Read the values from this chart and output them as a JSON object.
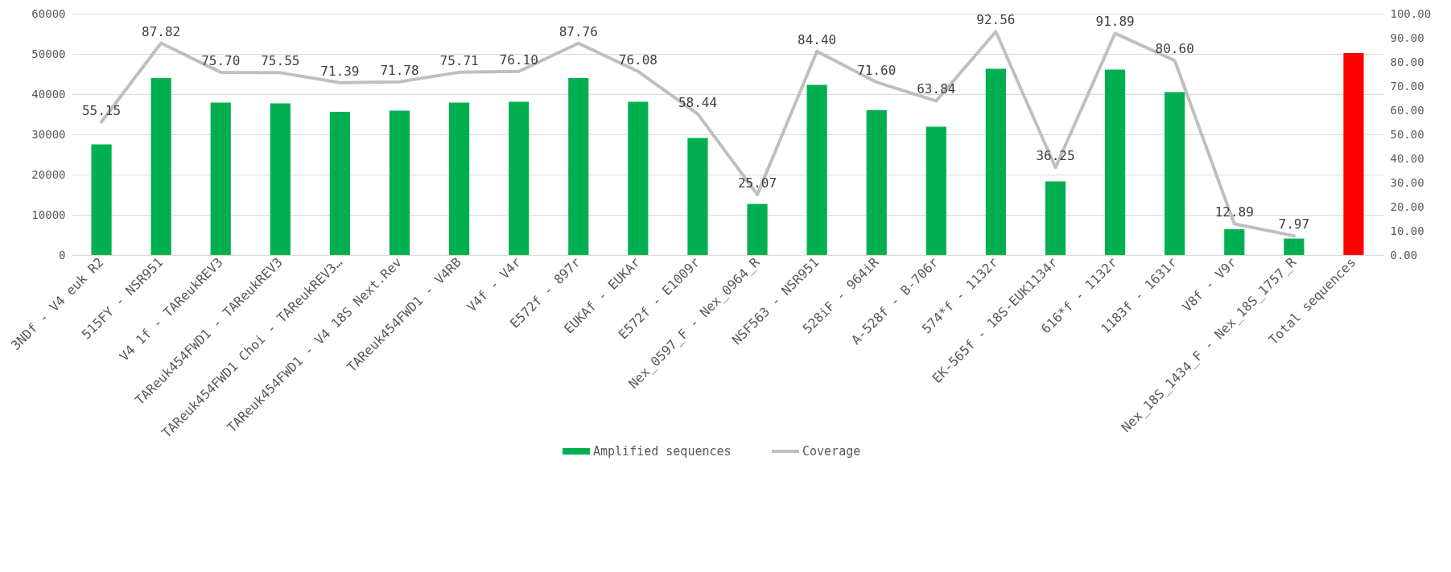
{
  "chart_data": {
    "type": "bar",
    "categories": [
      "3NDf - V4 euk R2",
      "515FY - NSR951",
      "V4 1f - TAReukREV3",
      "TAReuk454FWD1 - TAReukREV3",
      "TAReuk454FWD1 Choi - TAReukREV3…",
      "TAReuk454FWD1 - V4 18S Next.Rev",
      "TAReuk454FWD1 - V4RB",
      "V4f - V4r",
      "E572f - 897r",
      "EUKAf - EUKAr",
      "E572f - E1009r",
      "Nex_0597_F - Nex_0964_R",
      "NSF563 - NSR951",
      "528iF - 964iR",
      "A-528f - B-706r",
      "574*f - 1132r",
      "EK-565f - 18S-EUK1134r",
      "616*f - 1132r",
      "1183f - 1631r",
      "V8f - V9r",
      "Nex_18S_1434_F - Nex_18S_1757_R",
      "Total sequences"
    ],
    "series": [
      {
        "name": "Amplified sequences",
        "color": "#00b050",
        "colors": [
          "#00b050",
          "#00b050",
          "#00b050",
          "#00b050",
          "#00b050",
          "#00b050",
          "#00b050",
          "#00b050",
          "#00b050",
          "#00b050",
          "#00b050",
          "#00b050",
          "#00b050",
          "#00b050",
          "#00b050",
          "#00b050",
          "#00b050",
          "#00b050",
          "#00b050",
          "#00b050",
          "#00b050",
          "#ff0000"
        ],
        "values": [
          27500,
          44000,
          37900,
          37700,
          35600,
          35900,
          37900,
          38100,
          44000,
          38100,
          29100,
          12700,
          42300,
          36000,
          31900,
          46300,
          18300,
          46100,
          40500,
          6400,
          4100,
          50200
        ]
      },
      {
        "name": "Coverage",
        "type": "line",
        "axis": "y2",
        "color": "#bfbfbf",
        "values": [
          55.15,
          87.82,
          75.7,
          75.55,
          71.39,
          71.78,
          75.71,
          76.1,
          87.76,
          76.08,
          58.44,
          25.07,
          84.4,
          71.6,
          63.84,
          92.56,
          36.25,
          91.89,
          80.6,
          12.89,
          7.97,
          null
        ],
        "value_labels": [
          "55.15",
          "87.82",
          "75.70",
          "75.55",
          "71.39",
          "71.78",
          "75.71",
          "76.10",
          "87.76",
          "76.08",
          "58.44",
          "25.07",
          "84.40",
          "71.60",
          "63.84",
          "92.56",
          "36.25",
          "91.89",
          "80.60",
          "12.89",
          "7.97",
          null
        ]
      }
    ],
    "ylim": [
      0,
      60000
    ],
    "yticks": [
      0,
      10000,
      20000,
      30000,
      40000,
      50000,
      60000
    ],
    "y2lim": [
      0,
      100
    ],
    "y2ticks": [
      {
        "value": 0,
        "label": "0.00"
      },
      {
        "value": 10,
        "label": "10.00"
      },
      {
        "value": 20,
        "label": "20.00"
      },
      {
        "value": 30,
        "label": "30.00"
      },
      {
        "value": 40,
        "label": "40.00"
      },
      {
        "value": 50,
        "label": "50.00"
      },
      {
        "value": 60,
        "label": "60.00"
      },
      {
        "value": 70,
        "label": "70.00"
      },
      {
        "value": 80,
        "label": "80.00"
      },
      {
        "value": 90,
        "label": "90.00"
      },
      {
        "value": 100,
        "label": "100.00"
      }
    ],
    "grid": "y",
    "legend": "bottom",
    "marker": "none"
  }
}
